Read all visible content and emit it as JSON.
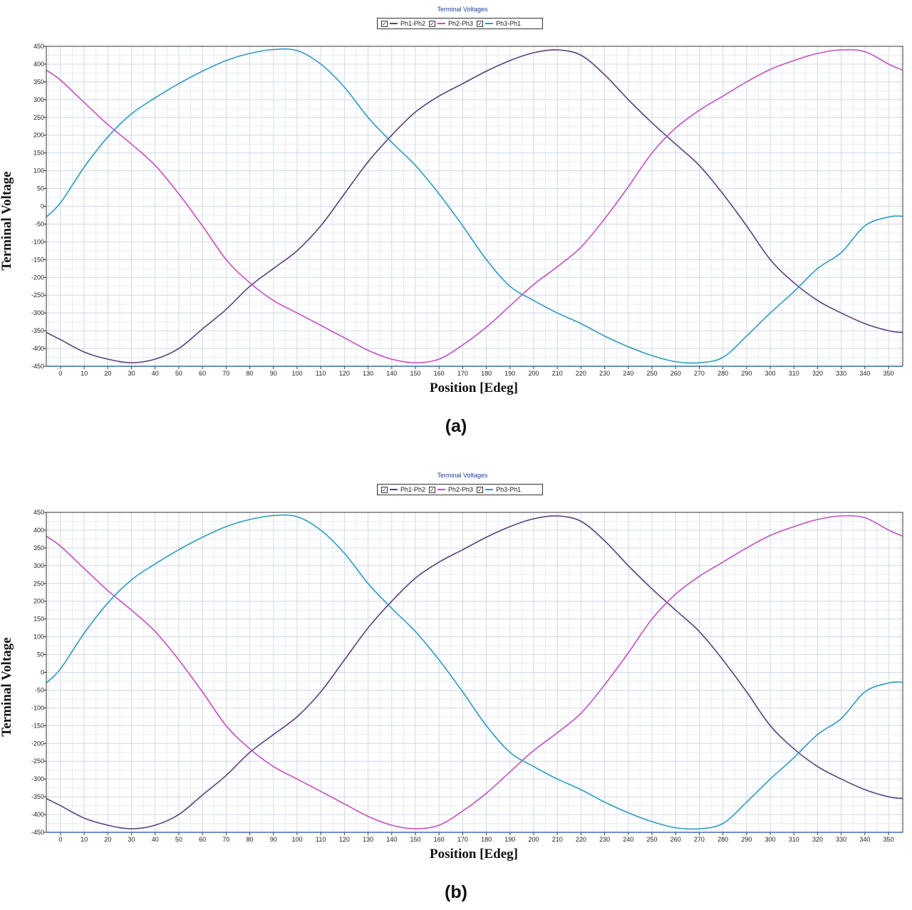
{
  "charts": [
    {
      "panel_label": "(a)",
      "chart_data": {
        "type": "line",
        "title": "Terminal Voltages",
        "xlabel": "Position [Edeg]",
        "ylabel": "Terminal Voltage",
        "xlim": [
          -6,
          356
        ],
        "ylim": [
          -450,
          450
        ],
        "xticks": [
          0,
          10,
          20,
          30,
          40,
          50,
          60,
          70,
          80,
          90,
          100,
          110,
          120,
          130,
          140,
          150,
          160,
          170,
          180,
          190,
          200,
          210,
          220,
          230,
          240,
          250,
          260,
          270,
          280,
          290,
          300,
          310,
          320,
          330,
          340,
          350
        ],
        "yticks": [
          450,
          400,
          350,
          300,
          250,
          200,
          150,
          100,
          50,
          0,
          -50,
          -100,
          -150,
          -200,
          -250,
          -300,
          -350,
          -400,
          -450
        ],
        "grid": true,
        "legend_position": "top-center",
        "x": [
          -6,
          0,
          10,
          20,
          30,
          40,
          50,
          60,
          70,
          80,
          90,
          100,
          110,
          120,
          130,
          140,
          150,
          160,
          170,
          180,
          190,
          200,
          210,
          220,
          230,
          240,
          250,
          260,
          270,
          280,
          290,
          300,
          310,
          320,
          330,
          340,
          350,
          356
        ],
        "series": [
          {
            "name": "Ph1-Ph2",
            "color": "#5b3f7a",
            "values": [
              -355,
              -375,
              -410,
              -430,
              -440,
              -430,
              -400,
              -345,
              -290,
              -225,
              -175,
              -125,
              -55,
              35,
              125,
              200,
              265,
              310,
              345,
              380,
              410,
              432,
              440,
              425,
              370,
              300,
              235,
              175,
              115,
              35,
              -55,
              -150,
              -215,
              -265,
              -300,
              -330,
              -350,
              -355
            ]
          },
          {
            "name": "Ph2-Ph3",
            "color": "#c44fbf",
            "values": [
              383,
              355,
              292,
              230,
              175,
              115,
              35,
              -55,
              -150,
              -215,
              -265,
              -300,
              -335,
              -370,
              -405,
              -430,
              -440,
              -430,
              -390,
              -340,
              -280,
              -220,
              -170,
              -115,
              -35,
              55,
              150,
              220,
              270,
              310,
              350,
              385,
              410,
              430,
              440,
              435,
              400,
              383
            ]
          },
          {
            "name": "Ph3-Ph1",
            "color": "#2e9ac0",
            "values": [
              -30,
              10,
              110,
              195,
              260,
              305,
              345,
              380,
              410,
              430,
              441,
              438,
              400,
              335,
              250,
              180,
              115,
              35,
              -55,
              -150,
              -225,
              -265,
              -300,
              -330,
              -365,
              -395,
              -420,
              -437,
              -440,
              -425,
              -365,
              -300,
              -240,
              -175,
              -130,
              -55,
              -30,
              -28
            ]
          }
        ]
      }
    },
    {
      "panel_label": "(b)",
      "chart_data": {
        "type": "line",
        "title": "Terminal Voltages",
        "xlabel": "Position [Edeg]",
        "ylabel": "Terminal Voltage",
        "xlim": [
          -6,
          356
        ],
        "ylim": [
          -450,
          450
        ],
        "xticks": [
          0,
          10,
          20,
          30,
          40,
          50,
          60,
          70,
          80,
          90,
          100,
          110,
          120,
          130,
          140,
          150,
          160,
          170,
          180,
          190,
          200,
          210,
          220,
          230,
          240,
          250,
          260,
          270,
          280,
          290,
          300,
          310,
          320,
          330,
          340,
          350
        ],
        "yticks": [
          450,
          400,
          350,
          300,
          250,
          200,
          150,
          100,
          50,
          0,
          -50,
          -100,
          -150,
          -200,
          -250,
          -300,
          -350,
          -400,
          -450
        ],
        "grid": true,
        "legend_position": "top-center",
        "x": [
          -6,
          0,
          10,
          20,
          30,
          40,
          50,
          60,
          70,
          80,
          90,
          100,
          110,
          120,
          130,
          140,
          150,
          160,
          170,
          180,
          190,
          200,
          210,
          220,
          230,
          240,
          250,
          260,
          270,
          280,
          290,
          300,
          310,
          320,
          330,
          340,
          350,
          356
        ],
        "series": [
          {
            "name": "Ph1-Ph2",
            "color": "#5b3f7a",
            "values": [
              -355,
              -375,
              -410,
              -430,
              -440,
              -430,
              -400,
              -345,
              -290,
              -225,
              -175,
              -125,
              -55,
              35,
              125,
              200,
              265,
              310,
              345,
              380,
              410,
              432,
              440,
              425,
              370,
              300,
              235,
              175,
              115,
              35,
              -55,
              -150,
              -215,
              -265,
              -300,
              -330,
              -350,
              -355
            ]
          },
          {
            "name": "Ph2-Ph3",
            "color": "#c44fbf",
            "values": [
              383,
              355,
              292,
              230,
              175,
              115,
              35,
              -55,
              -150,
              -215,
              -265,
              -300,
              -335,
              -370,
              -405,
              -430,
              -440,
              -430,
              -390,
              -340,
              -280,
              -220,
              -170,
              -115,
              -35,
              55,
              150,
              220,
              270,
              310,
              350,
              385,
              410,
              430,
              440,
              435,
              400,
              383
            ]
          },
          {
            "name": "Ph3-Ph1",
            "color": "#2e9ac0",
            "values": [
              -30,
              10,
              110,
              195,
              260,
              305,
              345,
              380,
              410,
              430,
              441,
              438,
              400,
              335,
              250,
              180,
              115,
              35,
              -55,
              -150,
              -225,
              -265,
              -300,
              -330,
              -365,
              -395,
              -420,
              -437,
              -440,
              -425,
              -365,
              -300,
              -240,
              -175,
              -130,
              -55,
              -30,
              -28
            ]
          }
        ]
      }
    }
  ]
}
